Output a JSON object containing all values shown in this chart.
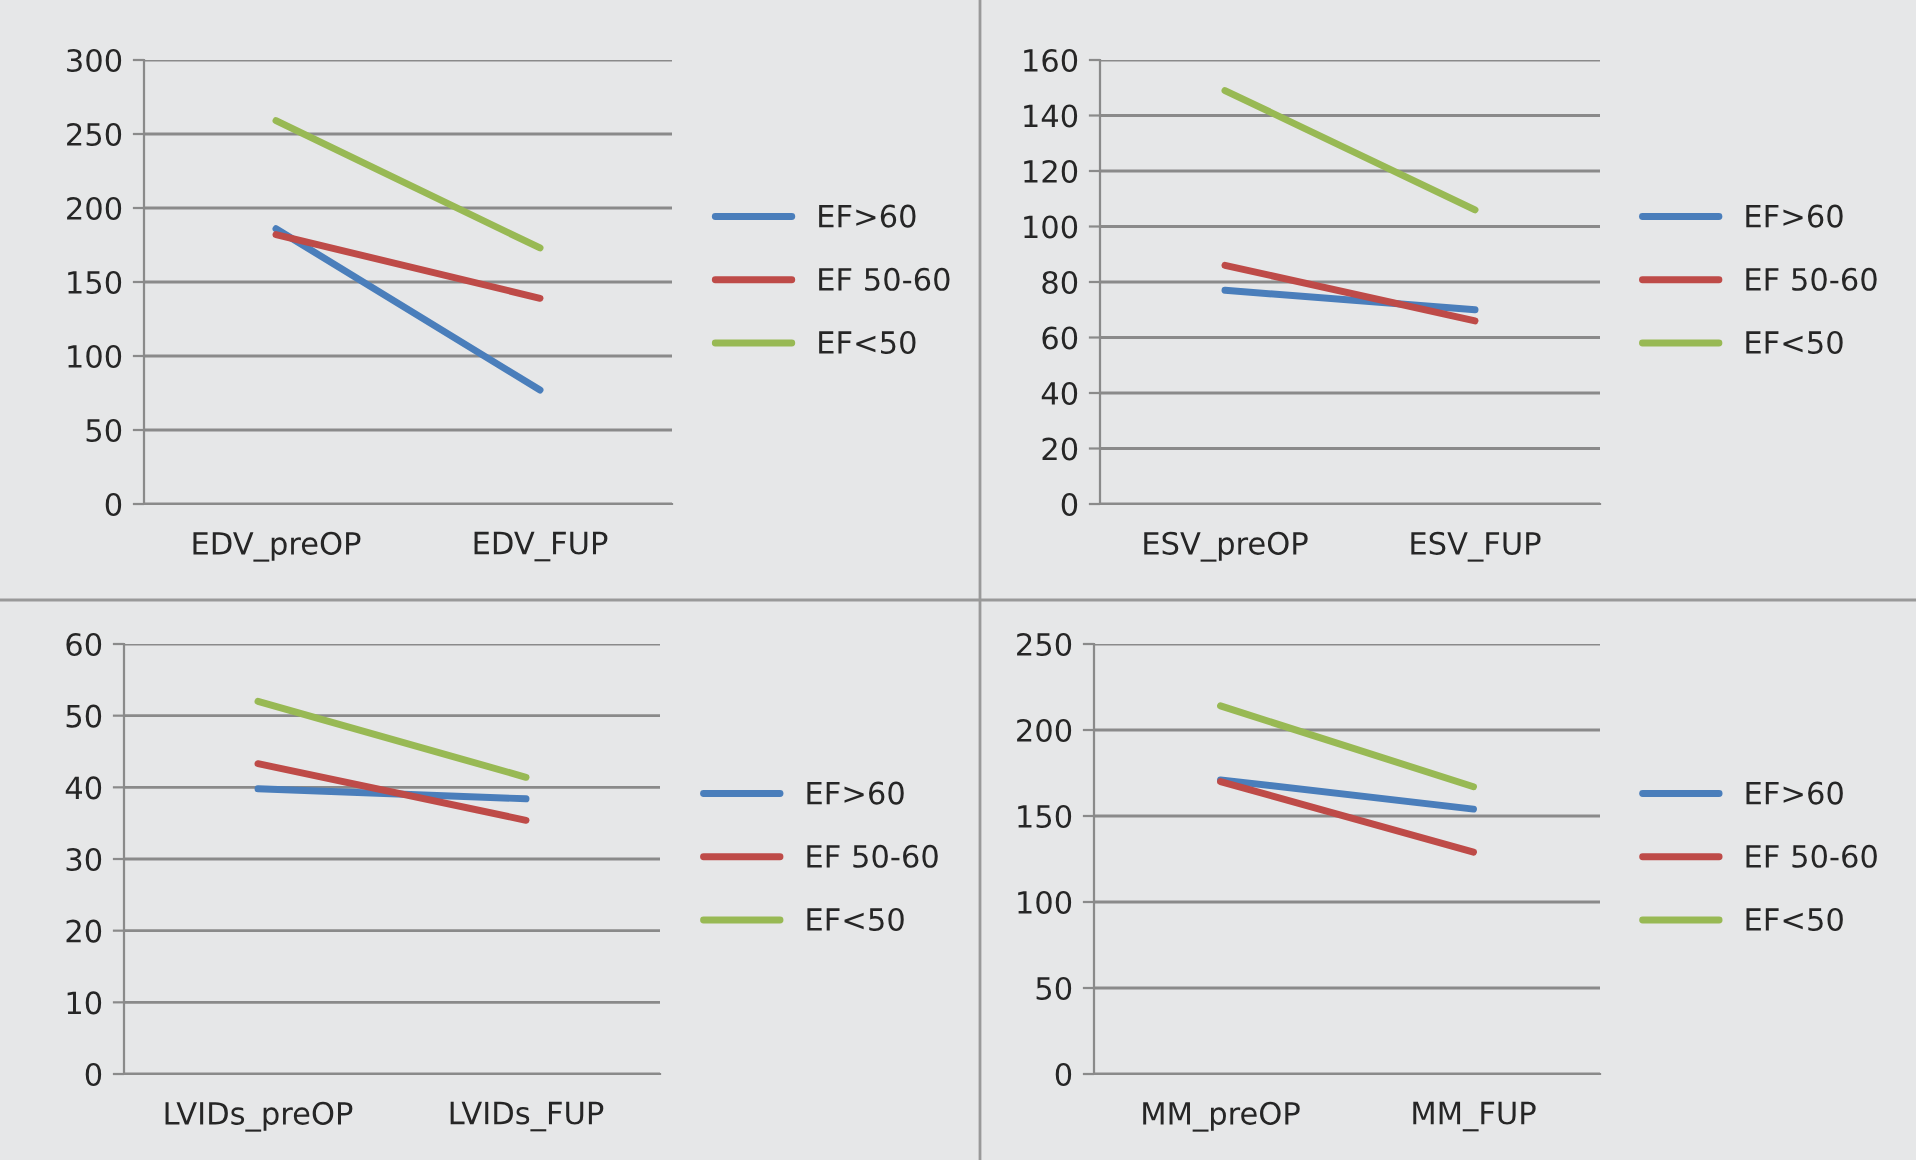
{
  "chart_data": [
    {
      "type": "line",
      "categories": [
        "EDV_preOP",
        "EDV_FUP"
      ],
      "ylim": [
        0,
        300
      ],
      "yticks": [
        0,
        50,
        100,
        150,
        200,
        250,
        300
      ],
      "grid": "y",
      "legend": "right",
      "series": [
        {
          "name": "EF>60",
          "color": "#4a7ebb",
          "values": [
            186,
            77
          ]
        },
        {
          "name": "EF 50-60",
          "color": "#be4b48",
          "values": [
            182,
            139
          ]
        },
        {
          "name": "EF<50",
          "color": "#98b954",
          "values": [
            259,
            173
          ]
        }
      ]
    },
    {
      "type": "line",
      "categories": [
        "ESV_preOP",
        "ESV_FUP"
      ],
      "ylim": [
        0,
        160
      ],
      "yticks": [
        0,
        20,
        40,
        60,
        80,
        100,
        120,
        140,
        160
      ],
      "grid": "y",
      "legend": "right",
      "series": [
        {
          "name": "EF>60",
          "color": "#4a7ebb",
          "values": [
            77,
            70
          ]
        },
        {
          "name": "EF 50-60",
          "color": "#be4b48",
          "values": [
            86,
            66
          ]
        },
        {
          "name": "EF<50",
          "color": "#98b954",
          "values": [
            149,
            106
          ]
        }
      ]
    },
    {
      "type": "line",
      "categories": [
        "LVIDs_preOP",
        "LVIDs_FUP"
      ],
      "ylim": [
        0,
        60
      ],
      "yticks": [
        0,
        10,
        20,
        30,
        40,
        50,
        60
      ],
      "grid": "y",
      "legend": "right",
      "series": [
        {
          "name": "EF>60",
          "color": "#4a7ebb",
          "values": [
            39.8,
            38.4
          ]
        },
        {
          "name": "EF 50-60",
          "color": "#be4b48",
          "values": [
            43.3,
            35.4
          ]
        },
        {
          "name": "EF<50",
          "color": "#98b954",
          "values": [
            52,
            41.4
          ]
        }
      ]
    },
    {
      "type": "line",
      "categories": [
        "MM_preOP",
        "MM_FUP"
      ],
      "ylim": [
        0,
        250
      ],
      "yticks": [
        0,
        50,
        100,
        150,
        200,
        250
      ],
      "grid": "y",
      "legend": "right",
      "series": [
        {
          "name": "EF>60",
          "color": "#4a7ebb",
          "values": [
            171,
            154
          ]
        },
        {
          "name": "EF 50-60",
          "color": "#be4b48",
          "values": [
            170,
            129
          ]
        },
        {
          "name": "EF<50",
          "color": "#98b954",
          "values": [
            214,
            167
          ]
        }
      ]
    }
  ]
}
